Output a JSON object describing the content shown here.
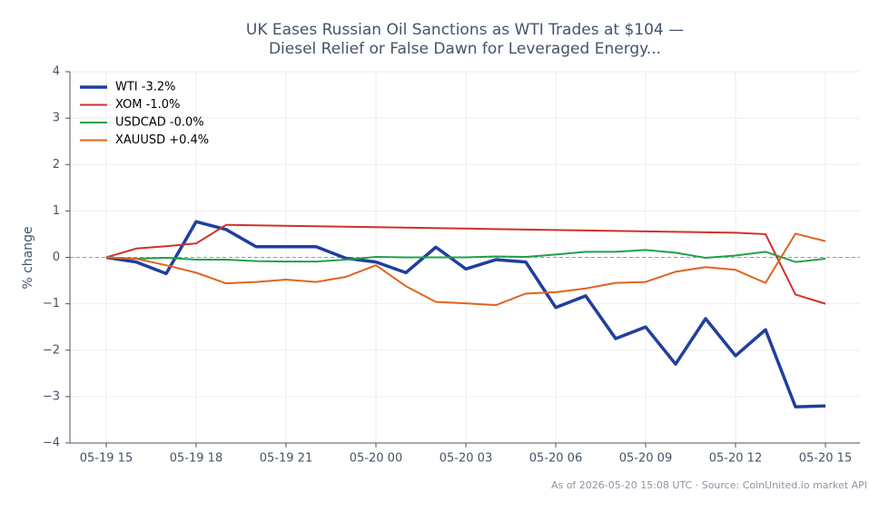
{
  "chart_data": {
    "type": "line",
    "title": [
      "UK Eases Russian Oil Sanctions as WTI Trades at $104 —",
      "Diesel Relief or False Dawn for Leveraged Energy..."
    ],
    "y_label": "% change",
    "footnote": "As of 2026-05-20 15:08 UTC · Source: CoinUnited.io market API",
    "categories": [
      "05-19 15",
      null,
      null,
      "05-19 18",
      null,
      null,
      "05-19 21",
      null,
      null,
      "05-20 00",
      null,
      null,
      "05-20 03",
      null,
      null,
      "05-20 06",
      null,
      null,
      "05-20 09",
      null,
      null,
      "05-20 12",
      null,
      null,
      "05-20 15"
    ],
    "series": [
      {
        "name": "WTI -3.2%",
        "color": "#1f3f9e",
        "width": 3.5,
        "values": [
          0,
          -0.1,
          -0.35,
          0.77,
          0.6,
          0.23,
          0.23,
          0.23,
          -0.02,
          -0.1,
          -0.33,
          0.22,
          -0.25,
          -0.05,
          -0.1,
          -1.08,
          -0.83,
          -1.75,
          -1.5,
          -2.3,
          -1.32,
          -2.12,
          -1.56,
          -3.22,
          -3.2
        ]
      },
      {
        "name": "XOM -1.0%",
        "color": "#d0302b",
        "width": 2,
        "values": [
          0,
          0.19,
          0.24,
          0.3,
          0.7,
          0.69,
          0.68,
          0.67,
          0.66,
          0.65,
          0.64,
          0.63,
          0.62,
          0.61,
          0.6,
          0.59,
          0.58,
          0.57,
          0.56,
          0.55,
          0.54,
          0.53,
          0.5,
          -0.8,
          -1.0
        ]
      },
      {
        "name": "USDCAD -0.0%",
        "color": "#22a04a",
        "width": 2,
        "values": [
          0,
          -0.03,
          -0.01,
          -0.05,
          -0.05,
          -0.08,
          -0.09,
          -0.09,
          -0.05,
          0.01,
          0,
          0,
          0,
          0.02,
          0.01,
          0.06,
          0.12,
          0.12,
          0.16,
          0.1,
          -0.01,
          0.04,
          0.12,
          -0.1,
          -0.03
        ]
      },
      {
        "name": "XAUUSD +0.4%",
        "color": "#e0641e",
        "width": 2,
        "values": [
          0,
          -0.03,
          -0.17,
          -0.33,
          -0.56,
          -0.53,
          -0.48,
          -0.53,
          -0.42,
          -0.17,
          -0.62,
          -0.96,
          -0.99,
          -1.03,
          -0.78,
          -0.75,
          -0.67,
          -0.55,
          -0.53,
          -0.31,
          -0.21,
          -0.27,
          -0.55,
          0.51,
          0.35
        ]
      }
    ],
    "ylim": [
      -4,
      4
    ],
    "yticks": [
      {
        "value": -4,
        "label": "−4"
      },
      {
        "value": -3,
        "label": "−3"
      },
      {
        "value": -2,
        "label": "−2"
      },
      {
        "value": -1,
        "label": "−1"
      },
      0,
      1,
      2,
      3,
      4
    ],
    "grid": true,
    "legend": "upper-left"
  }
}
